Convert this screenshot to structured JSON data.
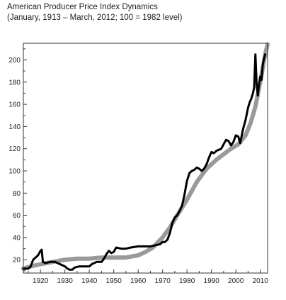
{
  "chart_data": {
    "type": "line",
    "title": "American Producer Price Index Dynamics",
    "subtitle": "(January, 1913 – March, 2012; 100 = 1982 level)",
    "xlabel": "",
    "ylabel": "",
    "xlim": [
      1913,
      2013
    ],
    "ylim": [
      8,
      215
    ],
    "x_ticks": [
      1920,
      1930,
      1940,
      1950,
      1960,
      1970,
      1980,
      1990,
      2000,
      2010
    ],
    "x_tick_labels": [
      "1920",
      "1930",
      "1940",
      "1950",
      "1960",
      "1970",
      "1980",
      "1990",
      "2000",
      "2010"
    ],
    "y_ticks": [
      20,
      40,
      60,
      80,
      100,
      120,
      140,
      160,
      180,
      200
    ],
    "y_tick_labels": [
      "20",
      "40",
      "60",
      "80",
      "100",
      "120",
      "140",
      "160",
      "180",
      "200"
    ],
    "grid": false,
    "legend": "none",
    "series": [
      {
        "color": "#9a9a9a",
        "x": [
          1913,
          1916,
          1920,
          1925,
          1930,
          1935,
          1940,
          1945,
          1950,
          1955,
          1960,
          1963,
          1966,
          1970,
          1973,
          1976,
          1980,
          1984,
          1988,
          1992,
          1995,
          1998,
          2001,
          2004,
          2006,
          2008,
          2010,
          2012,
          2013
        ],
        "y": [
          12,
          14,
          16,
          18,
          20,
          21,
          21,
          22,
          22,
          22,
          24,
          27,
          31,
          40,
          49,
          60,
          74,
          90,
          102,
          110,
          115,
          120,
          124,
          132,
          143,
          158,
          180,
          205,
          214
        ]
      },
      {
        "color": "#000000",
        "x": [
          1913,
          1914,
          1915,
          1916,
          1917,
          1918,
          1919,
          1920,
          1920.5,
          1921,
          1922,
          1924,
          1926,
          1928,
          1930,
          1931,
          1932,
          1933,
          1934,
          1936,
          1938,
          1940,
          1941,
          1943,
          1945,
          1946,
          1947,
          1948,
          1949,
          1950,
          1951,
          1953,
          1955,
          1957,
          1960,
          1963,
          1965,
          1967,
          1969,
          1970,
          1971,
          1972,
          1973,
          1974,
          1975,
          1976,
          1977,
          1978,
          1979,
          1980,
          1981,
          1982,
          1983,
          1984,
          1985,
          1986,
          1987,
          1988,
          1989,
          1990,
          1991,
          1992,
          1993,
          1994,
          1995,
          1996,
          1997,
          1998,
          1999,
          2000,
          2001,
          2001.8,
          2002.5,
          2003,
          2004,
          2005,
          2005.7,
          2006.3,
          2007,
          2007.5,
          2008,
          2008.5,
          2008.8,
          2009,
          2009.5,
          2010,
          2010.5,
          2011,
          2011.5,
          2012
        ],
        "y": [
          12,
          12,
          12,
          14,
          20,
          22,
          24,
          28,
          29,
          18,
          17,
          18,
          18,
          16,
          14,
          12,
          11,
          11,
          13,
          14,
          14,
          14,
          16,
          18,
          18,
          21,
          25,
          28,
          26,
          27,
          31,
          30,
          30,
          31,
          32,
          32,
          32,
          33,
          34,
          36,
          36,
          38,
          44,
          53,
          58,
          60,
          64,
          69,
          79,
          91,
          98,
          100,
          101,
          103,
          102,
          100,
          102,
          106,
          112,
          117,
          116,
          118,
          119,
          120,
          124,
          128,
          127,
          123,
          126,
          132,
          131,
          125,
          133,
          138,
          146,
          157,
          162,
          165,
          170,
          175,
          205,
          178,
          172,
          168,
          178,
          185,
          182,
          195,
          201,
          205
        ]
      }
    ]
  }
}
